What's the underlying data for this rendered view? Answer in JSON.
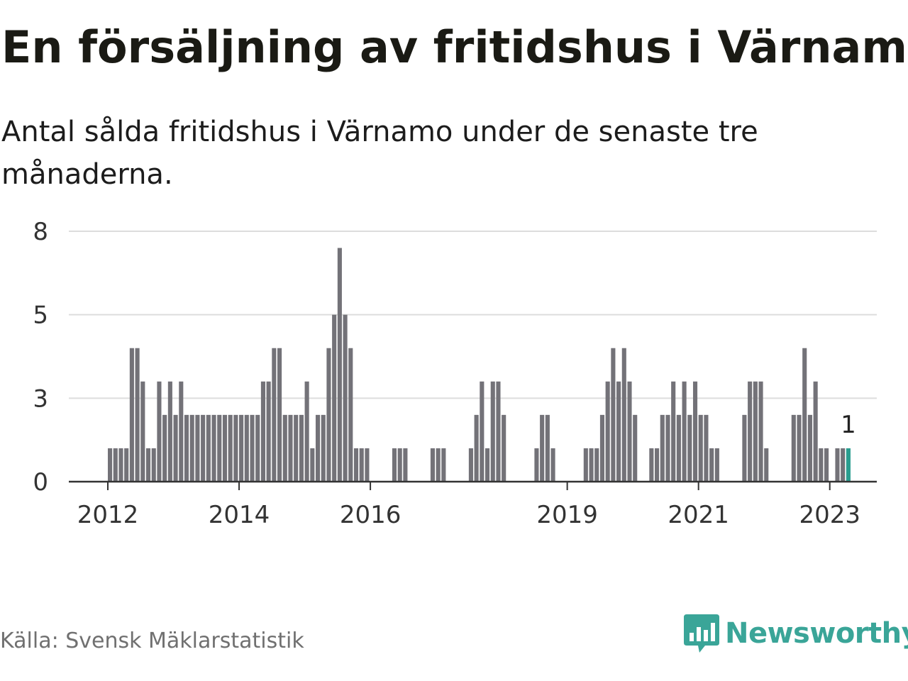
{
  "title": "En försäljning av fritidshus i Värnamo",
  "subtitle": "Antal sålda fritidshus i Värnamo under de senaste tre månaderna.",
  "source": "Källa: Svensk Mäklarstatistik",
  "brand": "Newsworthy",
  "colors": {
    "bar": "#737278",
    "highlight": "#2a9d8f",
    "brand": "#3aa598",
    "grid": "#dddddd",
    "axis": "#333333"
  },
  "chart_data": {
    "type": "bar",
    "title": "En försäljning av fritidshus i Värnamo",
    "xlabel": "",
    "ylabel": "",
    "ylim": [
      0,
      8
    ],
    "yticks": [
      "0",
      "3",
      "5",
      "8"
    ],
    "ytick_values": [
      0,
      2.5,
      5,
      7.5
    ],
    "start": {
      "year": 2012,
      "month": 1
    },
    "frequency": "monthly",
    "xtick_labels": [
      {
        "label": "2012",
        "index": 0
      },
      {
        "label": "2014",
        "index": 24
      },
      {
        "label": "2016",
        "index": 48
      },
      {
        "label": "2019",
        "index": 84
      },
      {
        "label": "2021",
        "index": 108
      },
      {
        "label": "2023",
        "index": 132
      }
    ],
    "values": [
      1,
      1,
      1,
      1,
      4,
      4,
      3,
      1,
      1,
      3,
      2,
      3,
      2,
      3,
      2,
      2,
      2,
      2,
      2,
      2,
      2,
      2,
      2,
      2,
      2,
      2,
      2,
      2,
      3,
      3,
      4,
      4,
      2,
      2,
      2,
      2,
      3,
      1,
      2,
      2,
      4,
      5,
      7,
      5,
      4,
      1,
      1,
      1,
      0,
      0,
      0,
      0,
      1,
      1,
      1,
      0,
      0,
      0,
      0,
      1,
      1,
      1,
      0,
      0,
      0,
      0,
      1,
      2,
      3,
      1,
      3,
      3,
      2,
      0,
      0,
      0,
      0,
      0,
      1,
      2,
      2,
      1,
      0,
      0,
      0,
      0,
      0,
      1,
      1,
      1,
      2,
      3,
      4,
      3,
      4,
      3,
      2,
      0,
      0,
      1,
      1,
      2,
      2,
      3,
      2,
      3,
      2,
      3,
      2,
      2,
      1,
      1,
      0,
      0,
      0,
      0,
      2,
      3,
      3,
      3,
      1,
      0,
      0,
      0,
      0,
      2,
      2,
      4,
      2,
      3,
      1,
      1,
      0,
      1,
      1,
      1
    ],
    "highlight_index": 135,
    "annotations": [
      {
        "text": "1",
        "index": 135
      }
    ]
  }
}
